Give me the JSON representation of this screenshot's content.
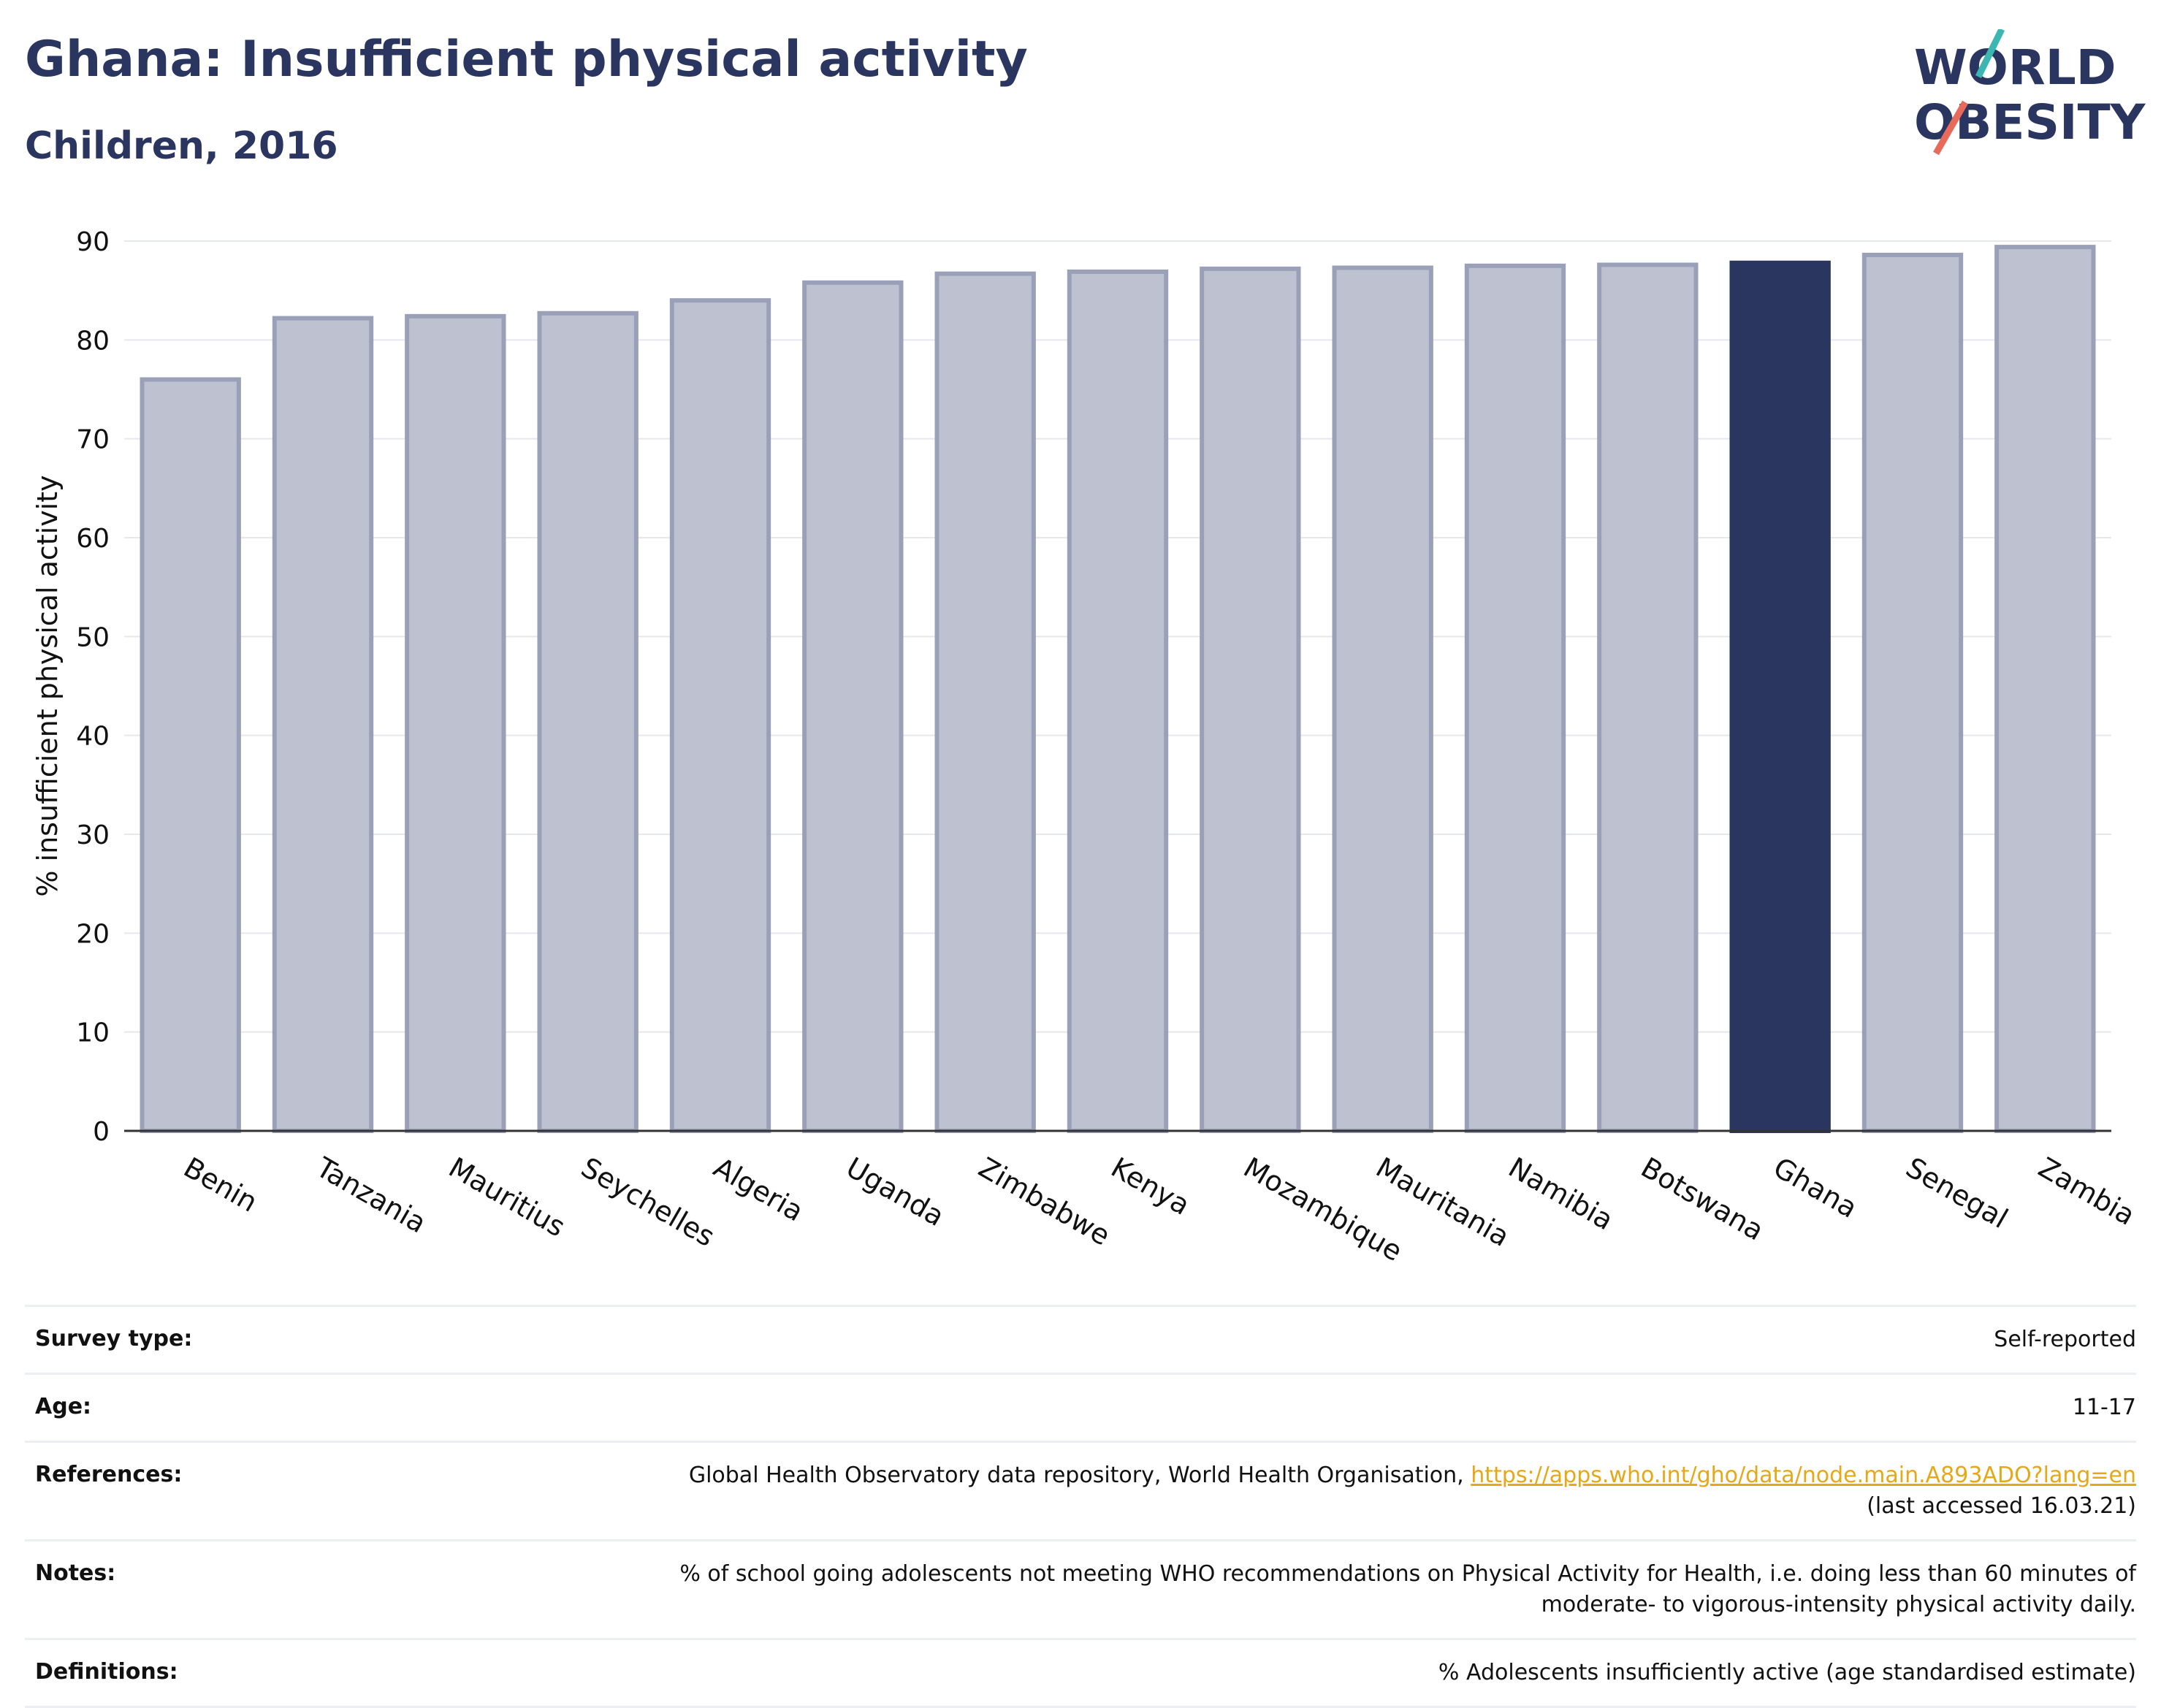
{
  "header": {
    "title": "Ghana: Insufficient physical activity",
    "subtitle": "Children, 2016",
    "logo_line1": "WORLD",
    "logo_line2": "OBESITY"
  },
  "colors": {
    "highlight": "#2a3560",
    "bar": "#bec1cf",
    "bar_stroke": "#9aa0b8",
    "accent_teal": "#3bb6b0",
    "accent_red": "#e86a5a",
    "link": "#e6a817"
  },
  "chart_data": {
    "type": "bar",
    "title": "Ghana: Insufficient physical activity",
    "subtitle": "Children, 2016",
    "ylabel": "% insufficient physical activity",
    "xlabel": "",
    "ylim": [
      0,
      90
    ],
    "yticks": [
      0,
      10,
      20,
      30,
      40,
      50,
      60,
      70,
      80,
      90
    ],
    "grid": true,
    "highlight": "Ghana",
    "categories": [
      "Benin",
      "Tanzania",
      "Mauritius",
      "Seychelles",
      "Algeria",
      "Uganda",
      "Zimbabwe",
      "Kenya",
      "Mozambique",
      "Mauritania",
      "Namibia",
      "Botswana",
      "Ghana",
      "Senegal",
      "Zambia"
    ],
    "values": [
      76.0,
      82.2,
      82.4,
      82.7,
      84.0,
      85.8,
      86.7,
      86.9,
      87.2,
      87.3,
      87.5,
      87.6,
      87.8,
      88.6,
      89.4
    ]
  },
  "meta": [
    {
      "label": "Survey type:",
      "value": "Self-reported"
    },
    {
      "label": "Age:",
      "value": "11-17"
    },
    {
      "label": "References:",
      "value": "Global Health Observatory data repository, World Health Organisation,",
      "link": "https://apps.who.int/gho/data/node.main.A893ADO?lang=en",
      "value2": "(last accessed 16.03.21)"
    },
    {
      "label": "Notes:",
      "value": "% of school going adolescents not meeting WHO recommendations on Physical Activity for Health, i.e. doing less than 60 minutes of",
      "value2": "moderate- to vigorous-intensity physical activity daily."
    },
    {
      "label": "Definitions:",
      "value": "% Adolescents insufficiently active (age standardised estimate)"
    }
  ]
}
